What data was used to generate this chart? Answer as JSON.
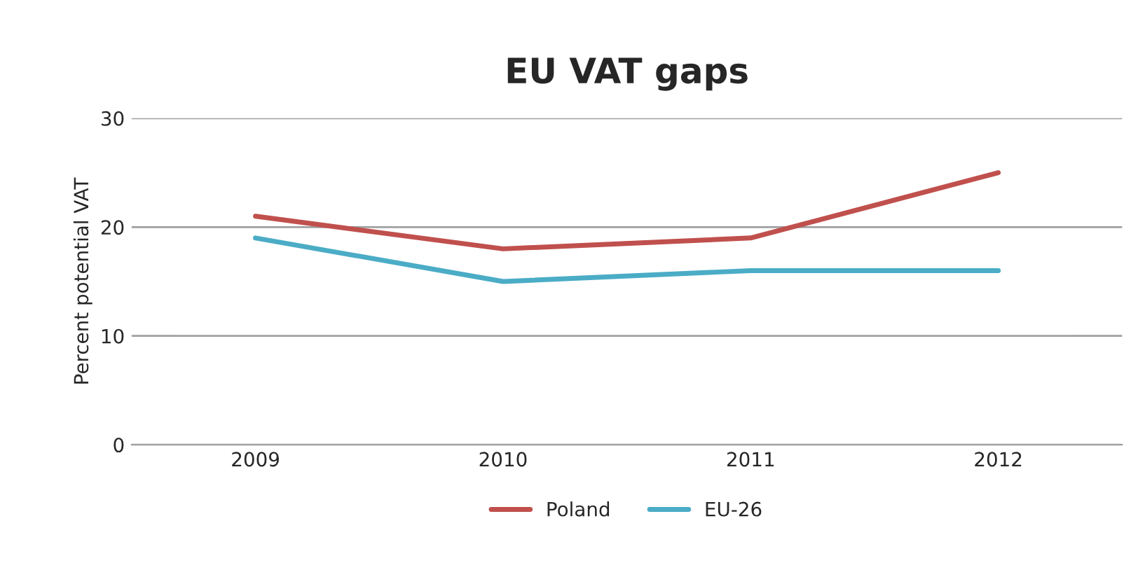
{
  "chart_data": {
    "type": "line",
    "title": "EU VAT gaps",
    "ylabel": "Percent potential VAT",
    "categories": [
      "2009",
      "2010",
      "2011",
      "2012"
    ],
    "series": [
      {
        "name": "Poland",
        "color": "#c0504d",
        "values": [
          21,
          18,
          19,
          25
        ]
      },
      {
        "name": "EU-26",
        "color": "#4bacc6",
        "values": [
          19,
          15,
          16,
          16
        ]
      }
    ],
    "ylim": [
      0,
      30
    ],
    "yticks": [
      0,
      10,
      20,
      30
    ],
    "grid": "y",
    "legend": "bottom",
    "marker": "none",
    "line_style": "solid"
  }
}
